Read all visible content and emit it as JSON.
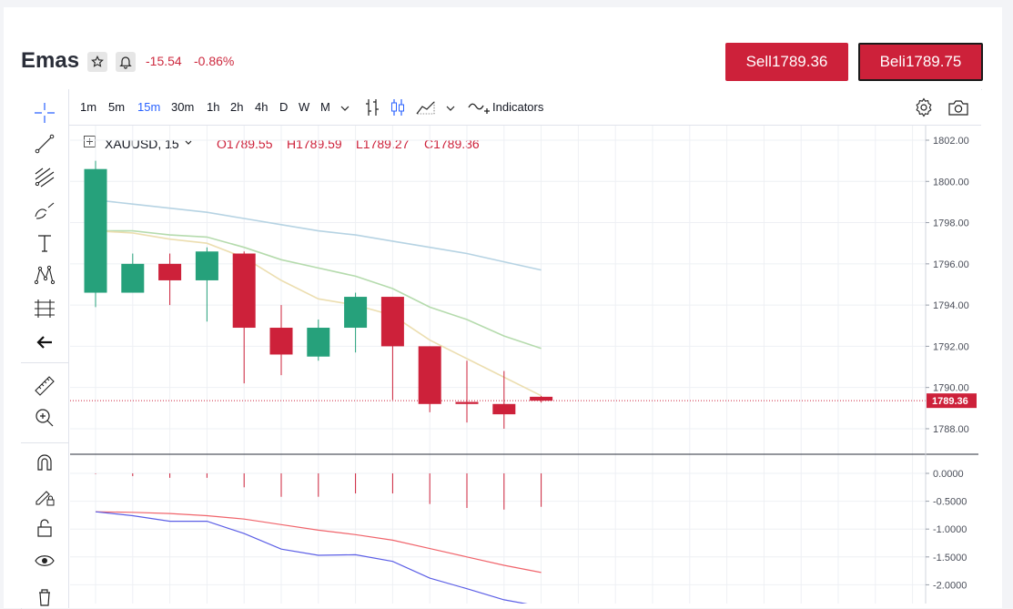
{
  "header": {
    "symbol_title": "Emas",
    "change_abs": "-15.54",
    "change_pct": "-0.86%",
    "sell_label": "Sell1789.36",
    "buy_label": "Beli1789.75"
  },
  "toolbar": {
    "timeframes": [
      "1m",
      "5m",
      "15m",
      "30m",
      "1h",
      "2h",
      "4h",
      "D",
      "W",
      "M"
    ],
    "active_timeframe": "15m",
    "indicators_label": "Indicators"
  },
  "legend": {
    "symbol": "XAUUSD, 15",
    "open": "O1789.55",
    "high": "H1789.59",
    "low": "L1789.27",
    "close": "C1789.36"
  },
  "colors": {
    "up": "#26a17b",
    "down": "#cd213a",
    "ema_blue": "#b6d3e3",
    "ema_green": "#b5dbad",
    "ema_yellow": "#ecdeb0",
    "macd_red": "#f0646b",
    "macd_blue": "#5b5ee6"
  },
  "chart_data": [
    {
      "type": "candlestick",
      "price_axis_ticks": [
        "1802.00",
        "1800.00",
        "1798.00",
        "1796.00",
        "1794.00",
        "1792.00",
        "1790.00",
        "1788.00"
      ],
      "ylim": [
        1787.0,
        1802.4
      ],
      "last_price_label": "1789.36",
      "candles": [
        {
          "o": 1794.6,
          "h": 1801.0,
          "l": 1793.9,
          "c": 1800.6
        },
        {
          "o": 1794.6,
          "h": 1796.5,
          "l": 1794.6,
          "c": 1796.0
        },
        {
          "o": 1796.0,
          "h": 1796.5,
          "l": 1794.0,
          "c": 1795.2
        },
        {
          "o": 1795.2,
          "h": 1796.8,
          "l": 1793.2,
          "c": 1796.6
        },
        {
          "o": 1796.5,
          "h": 1796.6,
          "l": 1790.2,
          "c": 1792.9
        },
        {
          "o": 1792.9,
          "h": 1794.0,
          "l": 1790.6,
          "c": 1791.6
        },
        {
          "o": 1791.5,
          "h": 1793.3,
          "l": 1791.3,
          "c": 1792.9
        },
        {
          "o": 1792.9,
          "h": 1794.6,
          "l": 1791.7,
          "c": 1794.4
        },
        {
          "o": 1794.4,
          "h": 1794.4,
          "l": 1789.4,
          "c": 1792.0
        },
        {
          "o": 1792.0,
          "h": 1792.0,
          "l": 1788.8,
          "c": 1789.2
        },
        {
          "o": 1789.3,
          "h": 1791.3,
          "l": 1788.3,
          "c": 1789.2
        },
        {
          "o": 1789.2,
          "h": 1790.8,
          "l": 1788.0,
          "c": 1788.7
        },
        {
          "o": 1789.55,
          "h": 1789.59,
          "l": 1789.27,
          "c": 1789.36
        }
      ],
      "ema_series": [
        {
          "values": [
            1799.1,
            1798.9,
            1798.7,
            1798.5,
            1798.2,
            1797.9,
            1797.6,
            1797.4,
            1797.1,
            1796.8,
            1796.5,
            1796.1,
            1795.7
          ]
        },
        {
          "values": [
            1797.6,
            1797.6,
            1797.4,
            1797.3,
            1796.8,
            1796.2,
            1795.8,
            1795.4,
            1794.8,
            1793.9,
            1793.3,
            1792.5,
            1791.9
          ]
        },
        {
          "values": [
            1797.6,
            1797.5,
            1797.2,
            1797.0,
            1796.3,
            1795.2,
            1794.3,
            1794.0,
            1793.5,
            1792.3,
            1791.4,
            1790.5,
            1789.6
          ]
        }
      ]
    },
    {
      "type": "macd",
      "axis_ticks": [
        "0.0000",
        "-0.5000",
        "-1.0000",
        "-1.5000",
        "-2.0000"
      ],
      "ylim": [
        -2.3,
        0.15
      ],
      "histogram": [
        -0.01,
        -0.05,
        -0.08,
        -0.08,
        -0.25,
        -0.42,
        -0.42,
        -0.36,
        -0.36,
        -0.55,
        -0.62,
        -0.65,
        -0.6
      ],
      "signal": [
        -0.69,
        -0.7,
        -0.72,
        -0.76,
        -0.82,
        -0.92,
        -1.02,
        -1.1,
        -1.2,
        -1.35,
        -1.5,
        -1.65,
        -1.78
      ],
      "macd": [
        -0.69,
        -0.76,
        -0.86,
        -0.86,
        -1.08,
        -1.36,
        -1.47,
        -1.46,
        -1.58,
        -1.88,
        -2.07,
        -2.27,
        -2.39
      ]
    }
  ]
}
